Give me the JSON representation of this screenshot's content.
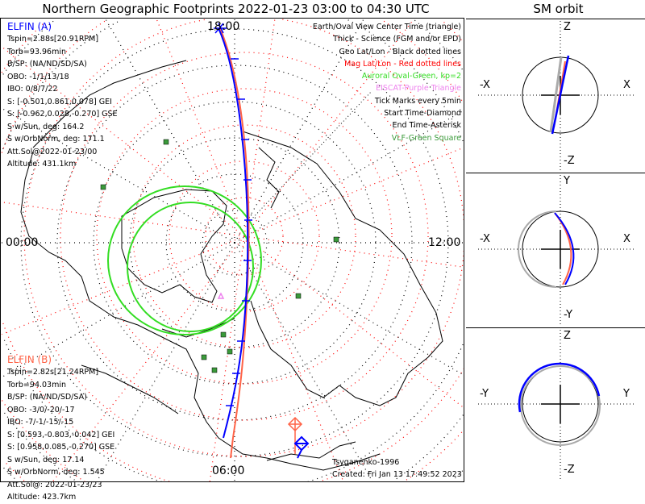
{
  "header": {
    "title": "Northern Geographic Footprints 2022-01-23 03:00 to 04:30 UTC",
    "sm_title": "SM orbit"
  },
  "map": {
    "clock_labels": {
      "top": "18:00",
      "bottom": "06:00",
      "left": "00:00",
      "right": "12:00"
    },
    "colors": {
      "elfin_a": "#0000ff",
      "elfin_b": "#ff6347",
      "aurora": "#33dd22",
      "vlf": "#3a9a3a",
      "eiscat": "#ee82ee",
      "geo_grid": "#000000",
      "mag_grid": "#ff0000"
    }
  },
  "elfin_a": {
    "name": "ELFIN (A)",
    "lines": [
      "Tspin=2.88s[20.91RPM]",
      "Torb=93.96min",
      "B/SP: (NA/ND/SD/SA)",
      "OBO: -1/1/13/18",
      "IBO: 0/8/7/22",
      "S: [-0.501,0.861,0.078] GEI",
      "S: [-0.962,0.028,-0.270] GSE",
      "S w/Sun, deg: 164.2",
      "S w/OrbNorm, deg: 171.1",
      "Att.Sol@2022-01-23/00",
      "Altitude: 431.1km"
    ]
  },
  "elfin_b": {
    "name": "ELFIN (B)",
    "lines": [
      "Tspin=2.82s[21.24RPM]",
      "Torb=94.03min",
      "B/SP: (NA/ND/SD/SA)",
      "OBO: -3/0/-20/-17",
      "IBO: -7/-1/-15/-15",
      "S: [0.593,-0.803,-0.042] GEI",
      "S: [0.958,0.085,-0.270] GSE",
      "S w/Sun, deg: 17.14",
      "S w/OrbNorm, deg: 1.545",
      "Att.Sol@: 2022-01-23/23",
      "Altitude: 423.7km"
    ]
  },
  "legend": [
    {
      "text": "Earth/Oval View Center Time (triangle)",
      "color": "#000000"
    },
    {
      "text": "Thick - Science (FGM and/or EPD)",
      "color": "#000000"
    },
    {
      "text": "Geo Lat/Lon - Black dotted lines",
      "color": "#000000"
    },
    {
      "text": "Mag Lat/Lon - Red dotted lines",
      "color": "#ff0000"
    },
    {
      "text": "Auroral Oval-Green, kp=2",
      "color": "#33dd22"
    },
    {
      "text": "EISCAT-Purple Triangle",
      "color": "#ee82ee"
    },
    {
      "text": "Tick Marks every 5min",
      "color": "#000000"
    },
    {
      "text": "Start Time-Diamond",
      "color": "#000000"
    },
    {
      "text": "End Time-Asterisk",
      "color": "#000000"
    },
    {
      "text": "VLF-Green Square",
      "color": "#3a9a3a"
    }
  ],
  "credits": {
    "author": "Tsyganenko-1996",
    "created": "Created: Fri Jan 13 17:49:52 2023"
  },
  "sm_orbit": {
    "panels": [
      {
        "top": "Z",
        "bottom": "-Z",
        "left": "-X",
        "right": "X"
      },
      {
        "top": "Y",
        "bottom": "-Y",
        "left": "-X",
        "right": "X"
      },
      {
        "top": "Z",
        "bottom": "-Z",
        "left": "-Y",
        "right": "Y"
      }
    ]
  }
}
